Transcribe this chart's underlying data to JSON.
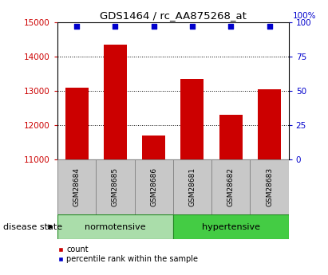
{
  "title": "GDS1464 / rc_AA875268_at",
  "samples": [
    "GSM28684",
    "GSM28685",
    "GSM28686",
    "GSM28681",
    "GSM28682",
    "GSM28683"
  ],
  "counts": [
    13100,
    14350,
    11700,
    13350,
    12300,
    13050
  ],
  "percentile_ranks": [
    97,
    97,
    97,
    97,
    97,
    97
  ],
  "ylim_left": [
    11000,
    15000
  ],
  "ylim_right": [
    0,
    100
  ],
  "yticks_left": [
    11000,
    12000,
    13000,
    14000,
    15000
  ],
  "yticks_right": [
    0,
    25,
    50,
    75,
    100
  ],
  "bar_color": "#cc0000",
  "dot_color": "#0000cc",
  "bar_bottom": 11000,
  "groups": [
    {
      "label": "normotensive",
      "indices": [
        0,
        1,
        2
      ],
      "color": "#aaddaa"
    },
    {
      "label": "hypertensive",
      "indices": [
        3,
        4,
        5
      ],
      "color": "#44cc44"
    }
  ],
  "group_label_prefix": "disease state",
  "legend_count_label": "count",
  "legend_percentile_label": "percentile rank within the sample",
  "tick_color_left": "#cc0000",
  "tick_color_right": "#0000cc",
  "grid_color": "black",
  "sample_box_color": "#c8c8c8",
  "sample_box_edge_color": "#888888",
  "group_edge_color": "#228822"
}
